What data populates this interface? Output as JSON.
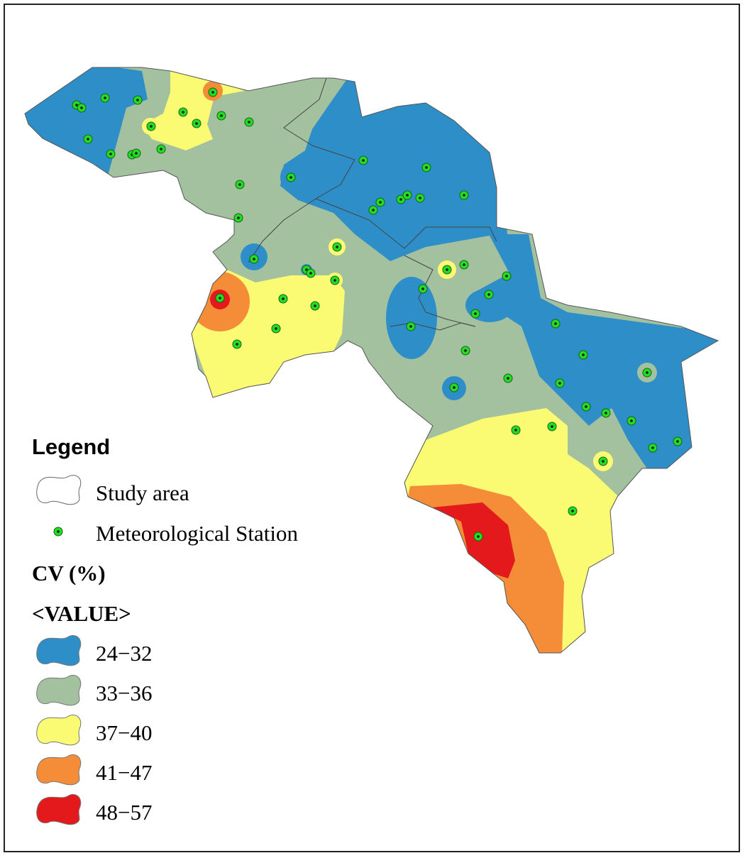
{
  "legend": {
    "title": "Legend",
    "items": [
      {
        "label": "Study area"
      },
      {
        "label": "Meteorological Station"
      }
    ],
    "cv_title": "CV (%)",
    "value_header": "<VALUE>",
    "classes": [
      {
        "label": "24−32",
        "color": "#2e8fc8"
      },
      {
        "label": "33−36",
        "color": "#a4c19f"
      },
      {
        "label": "37−40",
        "color": "#fafa73"
      },
      {
        "label": "41−47",
        "color": "#f48c38"
      },
      {
        "label": "48−57",
        "color": "#e3191b"
      }
    ]
  }
}
